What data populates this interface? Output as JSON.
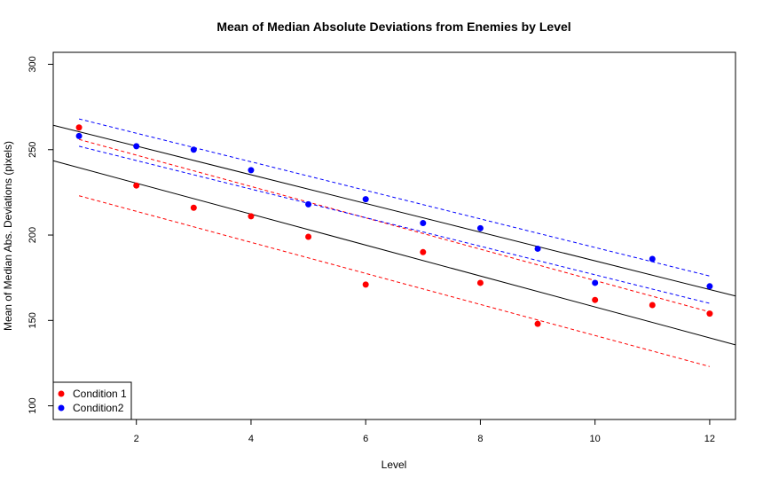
{
  "chart_data": {
    "type": "scatter",
    "title": "Mean of Median Absolute Deviations from Enemies by Level",
    "xlabel": "Level",
    "ylabel": "Mean of Median Abs. Deviations (pixels)",
    "xlim": [
      0.55,
      12.45
    ],
    "ylim": [
      92,
      307
    ],
    "xticks": [
      2,
      4,
      6,
      8,
      10,
      12
    ],
    "yticks": [
      100,
      150,
      200,
      250,
      300
    ],
    "legend_position": "bottom-left",
    "series": [
      {
        "name": "Condition 1",
        "color": "#ff0000",
        "x": [
          1,
          2,
          3,
          4,
          5,
          6,
          7,
          8,
          9,
          10,
          11,
          12
        ],
        "y": [
          263,
          229,
          216,
          211,
          199,
          171,
          190,
          172,
          148,
          162,
          159,
          154
        ],
        "fit": {
          "x": [
            0.55,
            12.45
          ],
          "y": [
            243.5,
            135.7
          ]
        },
        "ci_lower": {
          "x": [
            1,
            12
          ],
          "y": [
            223,
            123
          ]
        },
        "ci_upper": {
          "x": [
            1,
            12
          ],
          "y": [
            256,
            155
          ]
        }
      },
      {
        "name": "Condition2",
        "color": "#0000ff",
        "x": [
          1,
          2,
          3,
          4,
          5,
          6,
          7,
          8,
          9,
          10,
          11,
          12
        ],
        "y": [
          258,
          252,
          250,
          238,
          218,
          221,
          207,
          204,
          192,
          172,
          186,
          170
        ],
        "fit": {
          "x": [
            0.55,
            12.45
          ],
          "y": [
            264.3,
            164.3
          ]
        },
        "ci_lower": {
          "x": [
            1,
            12
          ],
          "y": [
            252,
            160
          ]
        },
        "ci_upper": {
          "x": [
            1,
            12
          ],
          "y": [
            268,
            176
          ]
        }
      }
    ]
  }
}
